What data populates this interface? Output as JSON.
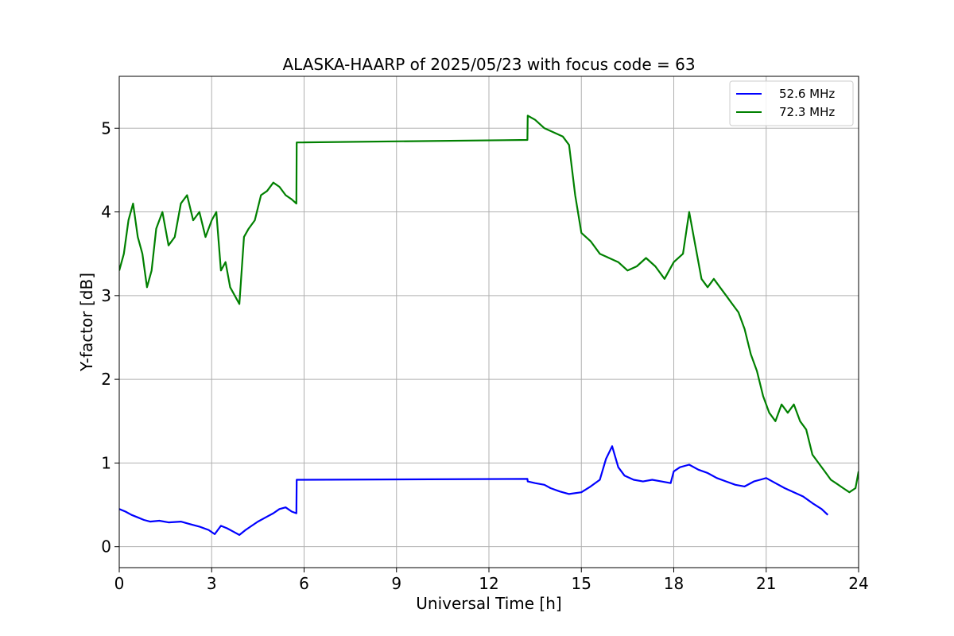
{
  "chart_data": {
    "type": "line",
    "title": "ALASKA-HAARP of 2025/05/23 with focus code = 63",
    "xlabel": "Universal Time [h]",
    "ylabel": "Y-factor [dB]",
    "xlim": [
      0,
      24
    ],
    "ylim": [
      -0.25,
      5.62
    ],
    "xticks": [
      0,
      3,
      6,
      9,
      12,
      15,
      18,
      21,
      24
    ],
    "yticks": [
      0,
      1,
      2,
      3,
      4,
      5
    ],
    "grid": true,
    "legend_position": "top-right",
    "series": [
      {
        "name": "52.6 MHz",
        "color": "#0000ff",
        "x": [
          0,
          0.2,
          0.4,
          0.6,
          0.8,
          1.0,
          1.3,
          1.6,
          2.0,
          2.3,
          2.6,
          2.9,
          3.1,
          3.3,
          3.5,
          3.7,
          3.9,
          4.1,
          4.3,
          4.5,
          4.8,
          5.0,
          5.2,
          5.4,
          5.6,
          5.75,
          5.76,
          13.25,
          13.26,
          13.5,
          13.8,
          14.0,
          14.3,
          14.6,
          15.0,
          15.3,
          15.6,
          15.8,
          16.0,
          16.2,
          16.4,
          16.7,
          17.0,
          17.3,
          17.6,
          17.9,
          18.0,
          18.2,
          18.5,
          18.8,
          19.1,
          19.4,
          19.7,
          20.0,
          20.3,
          20.6,
          20.8,
          21.0,
          21.3,
          21.6,
          21.9,
          22.2,
          22.5,
          22.8,
          23.0
        ],
        "y": [
          0.45,
          0.42,
          0.38,
          0.35,
          0.32,
          0.3,
          0.31,
          0.29,
          0.3,
          0.27,
          0.24,
          0.2,
          0.15,
          0.25,
          0.22,
          0.18,
          0.14,
          0.2,
          0.25,
          0.3,
          0.36,
          0.4,
          0.45,
          0.47,
          0.42,
          0.4,
          0.8,
          0.81,
          0.78,
          0.76,
          0.74,
          0.7,
          0.66,
          0.63,
          0.65,
          0.72,
          0.8,
          1.05,
          1.2,
          0.95,
          0.85,
          0.8,
          0.78,
          0.8,
          0.78,
          0.76,
          0.9,
          0.95,
          0.98,
          0.92,
          0.88,
          0.82,
          0.78,
          0.74,
          0.72,
          0.78,
          0.8,
          0.82,
          0.76,
          0.7,
          0.65,
          0.6,
          0.52,
          0.45,
          0.38
        ]
      },
      {
        "name": "72.3 MHz",
        "color": "#008000",
        "x": [
          0,
          0.15,
          0.3,
          0.45,
          0.6,
          0.75,
          0.9,
          1.05,
          1.2,
          1.4,
          1.6,
          1.8,
          2.0,
          2.2,
          2.4,
          2.6,
          2.8,
          3.0,
          3.15,
          3.3,
          3.45,
          3.6,
          3.75,
          3.9,
          4.05,
          4.2,
          4.4,
          4.6,
          4.8,
          5.0,
          5.2,
          5.4,
          5.6,
          5.75,
          5.76,
          13.25,
          13.26,
          13.5,
          13.8,
          14.1,
          14.4,
          14.6,
          14.8,
          15.0,
          15.3,
          15.6,
          15.9,
          16.2,
          16.5,
          16.8,
          17.1,
          17.4,
          17.7,
          18.0,
          18.3,
          18.5,
          18.7,
          18.9,
          19.1,
          19.3,
          19.5,
          19.7,
          19.9,
          20.1,
          20.3,
          20.5,
          20.7,
          20.9,
          21.1,
          21.3,
          21.5,
          21.7,
          21.9,
          22.1,
          22.3,
          22.5,
          22.7,
          22.9,
          23.1,
          23.3,
          23.5,
          23.7,
          23.9,
          24.0
        ],
        "y": [
          3.3,
          3.5,
          3.9,
          4.1,
          3.7,
          3.5,
          3.1,
          3.3,
          3.8,
          4.0,
          3.6,
          3.7,
          4.1,
          4.2,
          3.9,
          4.0,
          3.7,
          3.9,
          4.0,
          3.3,
          3.4,
          3.1,
          3.0,
          2.9,
          3.7,
          3.8,
          3.9,
          4.2,
          4.25,
          4.35,
          4.3,
          4.2,
          4.15,
          4.1,
          4.83,
          4.86,
          5.15,
          5.1,
          5.0,
          4.95,
          4.9,
          4.8,
          4.2,
          3.75,
          3.65,
          3.5,
          3.45,
          3.4,
          3.3,
          3.35,
          3.45,
          3.35,
          3.2,
          3.4,
          3.5,
          4.0,
          3.6,
          3.2,
          3.1,
          3.2,
          3.1,
          3.0,
          2.9,
          2.8,
          2.6,
          2.3,
          2.1,
          1.8,
          1.6,
          1.5,
          1.7,
          1.6,
          1.7,
          1.5,
          1.4,
          1.1,
          1.0,
          0.9,
          0.8,
          0.75,
          0.7,
          0.65,
          0.7,
          0.9
        ]
      }
    ]
  }
}
